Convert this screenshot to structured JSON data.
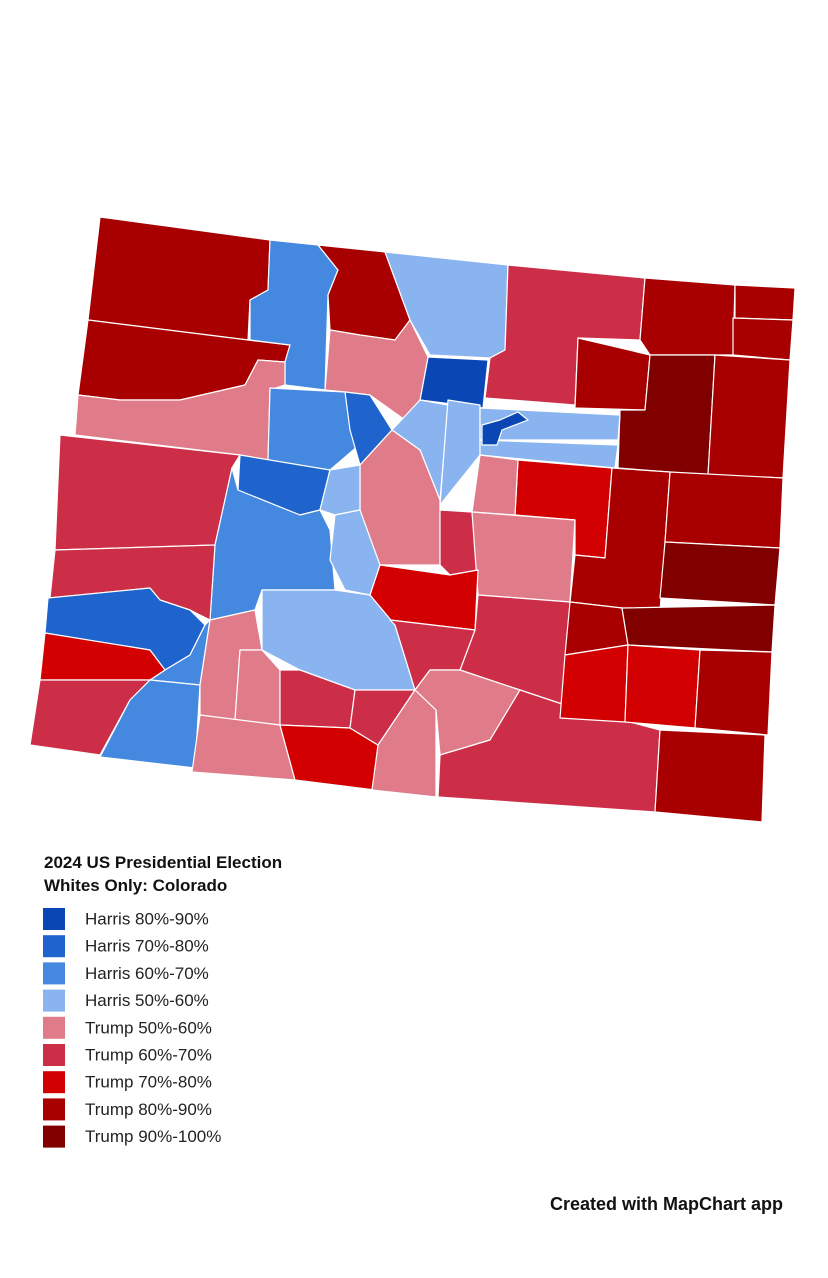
{
  "legend": {
    "title": [
      "2024 US Presidential Election",
      "Whites Only: Colorado"
    ],
    "items": [
      {
        "label": "Harris 80%-90%",
        "color": "#0a47b5"
      },
      {
        "label": "Harris 70%-80%",
        "color": "#1f63cc"
      },
      {
        "label": "Harris 60%-70%",
        "color": "#4488e0"
      },
      {
        "label": "Harris 50%-60%",
        "color": "#8ab4f0"
      },
      {
        "label": "Trump 50%-60%",
        "color": "#e07c8a"
      },
      {
        "label": "Trump 60%-70%",
        "color": "#cc2e48"
      },
      {
        "label": "Trump 70%-80%",
        "color": "#d20000"
      },
      {
        "label": "Trump 80%-90%",
        "color": "#a80000"
      },
      {
        "label": "Trump 90%-100%",
        "color": "#800000"
      }
    ]
  },
  "footer": "Created with MapChart app"
}
